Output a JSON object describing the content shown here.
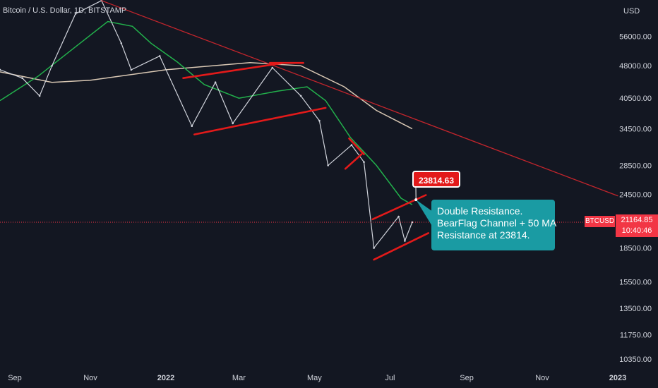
{
  "header": {
    "title": "Bitcoin / U.S. Dollar, 1D, BITSTAMP"
  },
  "colors": {
    "background": "#131722",
    "axis_text": "#d1d4dc",
    "trendline": "#c2252c",
    "drawing_red": "#e31a1a",
    "ma50": "#22b14c",
    "ma200": "#d9c8b4",
    "callout_bg": "#1a9ba3",
    "current_price_bg": "#f23645"
  },
  "annotation": {
    "lines": [
      "Double Resistance.",
      "BearFlag Channel + 50 MA",
      "Resistance at 23814."
    ]
  },
  "price_label": "23814.63",
  "current": {
    "ticker": "BTCUSD",
    "price": "21164.85",
    "countdown": "10:40:46"
  },
  "chart_data": {
    "type": "line",
    "title": "Bitcoin / U.S. Dollar, 1D, BITSTAMP",
    "y_scale": "log",
    "y_axis_unit": "USD",
    "y_ticks": [
      10350,
      11750,
      13500,
      15500,
      18500,
      24500,
      28500,
      34500,
      40500,
      48000,
      56000
    ],
    "y_tick_labels": [
      "10350.00",
      "11750.00",
      "13500.00",
      "15500.00",
      "18500.00",
      "24500.00",
      "28500.00",
      "34500.00",
      "40500.00",
      "48000.00",
      "56000.00"
    ],
    "x_ticks": [
      "2021-09-01",
      "2021-11-01",
      "2022-01-01",
      "2022-03-01",
      "2022-05-01",
      "2022-07-01",
      "2022-09-01",
      "2022-11-01",
      "2023-01-01"
    ],
    "x_tick_labels": [
      "Sep",
      "Nov",
      "2022",
      "Mar",
      "May",
      "Jul",
      "Sep",
      "Nov",
      "2023"
    ],
    "price_path": [
      {
        "x": "2021-08-20",
        "y": 47000
      },
      {
        "x": "2021-09-07",
        "y": 45000
      },
      {
        "x": "2021-09-21",
        "y": 41000
      },
      {
        "x": "2021-10-01",
        "y": 48000
      },
      {
        "x": "2021-10-20",
        "y": 63000
      },
      {
        "x": "2021-11-10",
        "y": 67500
      },
      {
        "x": "2021-11-26",
        "y": 54000
      },
      {
        "x": "2021-12-04",
        "y": 47000
      },
      {
        "x": "2021-12-27",
        "y": 50500
      },
      {
        "x": "2022-01-22",
        "y": 35000
      },
      {
        "x": "2022-02-10",
        "y": 44000
      },
      {
        "x": "2022-02-24",
        "y": 35500
      },
      {
        "x": "2022-03-28",
        "y": 47500
      },
      {
        "x": "2022-04-20",
        "y": 41000
      },
      {
        "x": "2022-05-05",
        "y": 36000
      },
      {
        "x": "2022-05-12",
        "y": 28500
      },
      {
        "x": "2022-05-31",
        "y": 31700
      },
      {
        "x": "2022-06-10",
        "y": 29000
      },
      {
        "x": "2022-06-18",
        "y": 18500
      },
      {
        "x": "2022-07-08",
        "y": 21800
      },
      {
        "x": "2022-07-13",
        "y": 19200
      },
      {
        "x": "2022-07-19",
        "y": 21164.85
      }
    ],
    "series": [
      {
        "name": "50 MA",
        "color": "#22b14c",
        "points": [
          {
            "x": "2021-08-20",
            "y": 40000
          },
          {
            "x": "2021-09-20",
            "y": 45500
          },
          {
            "x": "2021-10-20",
            "y": 53000
          },
          {
            "x": "2021-11-15",
            "y": 60500
          },
          {
            "x": "2021-12-05",
            "y": 59000
          },
          {
            "x": "2021-12-20",
            "y": 54000
          },
          {
            "x": "2022-01-10",
            "y": 49000
          },
          {
            "x": "2022-02-01",
            "y": 43500
          },
          {
            "x": "2022-03-01",
            "y": 40500
          },
          {
            "x": "2022-04-01",
            "y": 42000
          },
          {
            "x": "2022-04-25",
            "y": 43000
          },
          {
            "x": "2022-05-10",
            "y": 40000
          },
          {
            "x": "2022-05-30",
            "y": 33000
          },
          {
            "x": "2022-06-20",
            "y": 28500
          },
          {
            "x": "2022-07-10",
            "y": 24000
          },
          {
            "x": "2022-07-19",
            "y": 23200
          }
        ]
      },
      {
        "name": "200 MA",
        "color": "#d9c8b4",
        "points": [
          {
            "x": "2021-08-20",
            "y": 46500
          },
          {
            "x": "2021-10-01",
            "y": 44000
          },
          {
            "x": "2021-11-01",
            "y": 44500
          },
          {
            "x": "2022-01-01",
            "y": 47000
          },
          {
            "x": "2022-03-10",
            "y": 48800
          },
          {
            "x": "2022-04-20",
            "y": 48000
          },
          {
            "x": "2022-05-25",
            "y": 43000
          },
          {
            "x": "2022-06-20",
            "y": 38000
          },
          {
            "x": "2022-07-19",
            "y": 34500
          }
        ]
      }
    ],
    "trendlines": [
      {
        "name": "descending-trendline",
        "from": {
          "x": "2021-11-10",
          "y": 67500
        },
        "to": {
          "x": "2023-01-01",
          "y": 24300
        }
      },
      {
        "name": "top-left-line",
        "from": {
          "x": "2021-08-20",
          "y": 68500
        },
        "to": {
          "x": "2021-10-27",
          "y": 71000
        }
      },
      {
        "name": "channel-upper-2022",
        "from": {
          "x": "2022-01-15",
          "y": 45000
        },
        "to": {
          "x": "2022-04-04",
          "y": 48600
        }
      },
      {
        "name": "channel-lower-2022",
        "from": {
          "x": "2022-01-24",
          "y": 33500
        },
        "to": {
          "x": "2022-05-10",
          "y": 38500
        }
      },
      {
        "name": "h-line-april",
        "from": {
          "x": "2022-03-26",
          "y": 48700
        },
        "to": {
          "x": "2022-04-22",
          "y": 48700
        }
      },
      {
        "name": "flag-upper-may",
        "from": {
          "x": "2022-05-29",
          "y": 32800
        },
        "to": {
          "x": "2022-06-10",
          "y": 30200
        }
      },
      {
        "name": "flag-lower-may",
        "from": {
          "x": "2022-05-26",
          "y": 28000
        },
        "to": {
          "x": "2022-06-08",
          "y": 30200
        }
      },
      {
        "name": "bearflag-upper",
        "from": {
          "x": "2022-06-17",
          "y": 21500
        },
        "to": {
          "x": "2022-07-30",
          "y": 24400
        }
      },
      {
        "name": "bearflag-lower",
        "from": {
          "x": "2022-06-18",
          "y": 17400
        },
        "to": {
          "x": "2022-08-01",
          "y": 20000
        }
      }
    ],
    "current_price": 21164.85,
    "annotation_point": {
      "x": "2022-07-22",
      "y": 23814.63
    },
    "xlim": [
      "2021-08-20",
      "2023-01-01"
    ],
    "ylim": [
      9750,
      67700
    ],
    "grid": false,
    "legend": "none"
  }
}
